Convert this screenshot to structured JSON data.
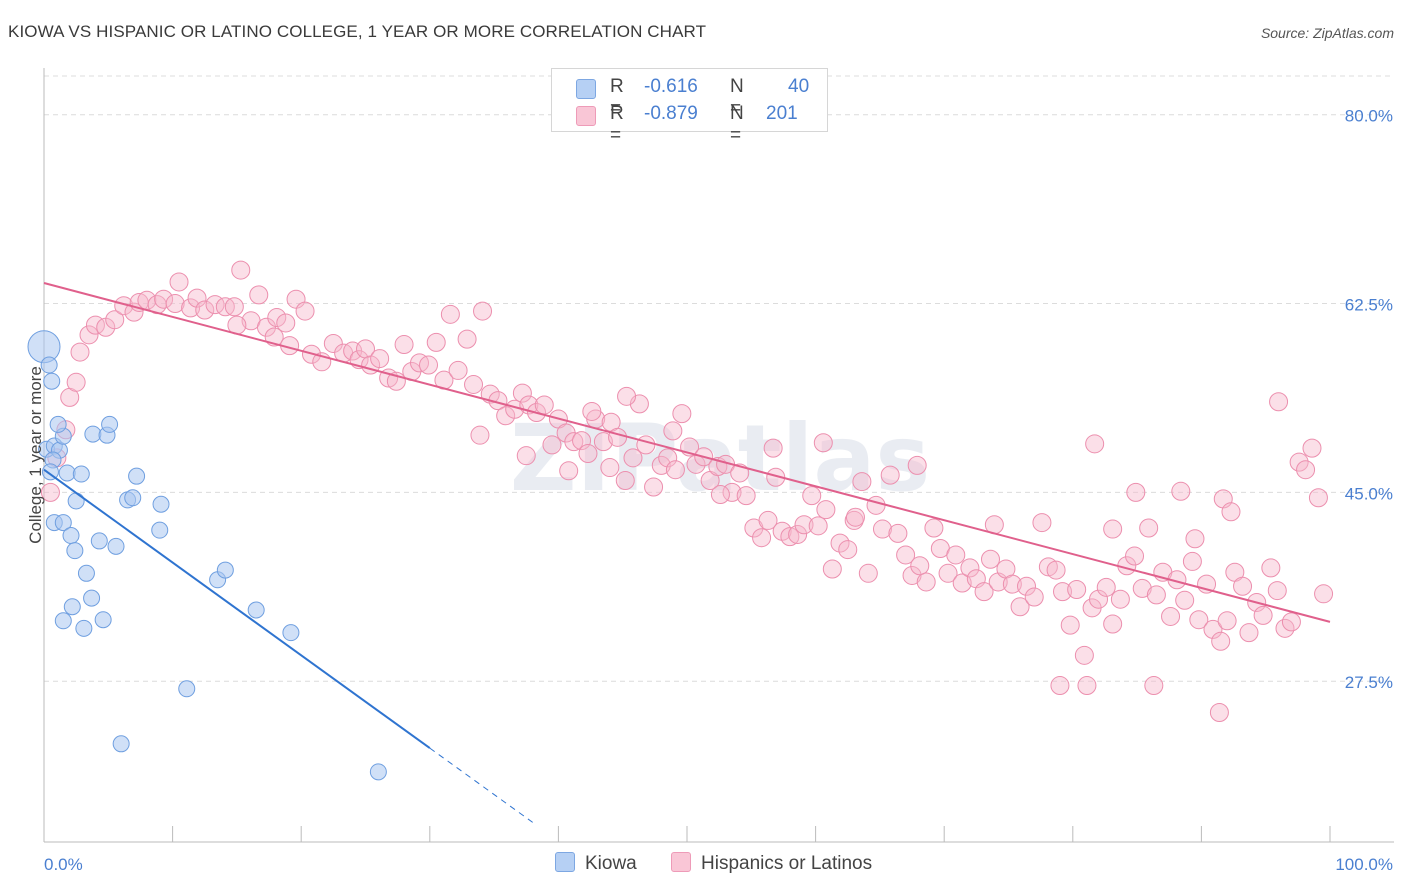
{
  "title": "KIOWA VS HISPANIC OR LATINO COLLEGE, 1 YEAR OR MORE CORRELATION CHART",
  "source": "Source: ZipAtlas.com",
  "watermark": "ZIPatlas",
  "colors": {
    "kiowa_fill": "#a9c7f0",
    "kiowa_stroke": "#6f9fe0",
    "kiowa_line": "#2f74d0",
    "hisp_fill": "#f7b9cc",
    "hisp_stroke": "#ec8fae",
    "hisp_line": "#e0608c",
    "tick_text": "#4a7fd0",
    "grid": "#dcdcdc"
  },
  "legend": {
    "rows": [
      {
        "r_label": "R =",
        "r_value": "-0.616",
        "n_label": "N =",
        "n_value": "40"
      },
      {
        "r_label": "R =",
        "r_value": "-0.879",
        "n_label": "N =",
        "n_value": "201"
      }
    ]
  },
  "chart_data": {
    "type": "scatter",
    "xlabel": "",
    "ylabel": "College, 1 year or more",
    "xlim": [
      0,
      100
    ],
    "ylim": [
      12.6,
      83.4
    ],
    "x_tick_labels": [
      "0.0%",
      "100.0%"
    ],
    "y_ticks": [
      27.5,
      45.0,
      62.5,
      80.0
    ],
    "y_tick_labels": [
      "27.5%",
      "45.0%",
      "62.5%",
      "80.0%"
    ],
    "grid": true,
    "legend_position": "top-center",
    "series": [
      {
        "name": "Kiowa",
        "r": -0.616,
        "n": 40,
        "trend": {
          "x0": 0.0,
          "y0": 47.1,
          "x1": 30.0,
          "y1": 21.3,
          "dash_to_x": 38.0
        },
        "points": [
          [
            0.0,
            58.5
          ],
          [
            0.4,
            56.8
          ],
          [
            0.6,
            55.3
          ],
          [
            0.2,
            49.0
          ],
          [
            0.8,
            49.3
          ],
          [
            1.2,
            48.9
          ],
          [
            1.5,
            50.2
          ],
          [
            1.1,
            51.3
          ],
          [
            0.7,
            48.0
          ],
          [
            0.5,
            46.9
          ],
          [
            1.8,
            46.8
          ],
          [
            2.9,
            46.7
          ],
          [
            3.8,
            50.4
          ],
          [
            4.9,
            50.3
          ],
          [
            5.1,
            51.3
          ],
          [
            7.2,
            46.5
          ],
          [
            6.5,
            44.3
          ],
          [
            6.9,
            44.5
          ],
          [
            9.1,
            43.9
          ],
          [
            9.0,
            41.5
          ],
          [
            0.8,
            42.2
          ],
          [
            1.5,
            42.2
          ],
          [
            2.1,
            41.0
          ],
          [
            2.5,
            44.2
          ],
          [
            4.3,
            40.5
          ],
          [
            5.6,
            40.0
          ],
          [
            2.4,
            39.6
          ],
          [
            3.3,
            37.5
          ],
          [
            3.7,
            35.2
          ],
          [
            2.2,
            34.4
          ],
          [
            1.5,
            33.1
          ],
          [
            3.1,
            32.4
          ],
          [
            4.6,
            33.2
          ],
          [
            13.5,
            36.9
          ],
          [
            14.1,
            37.8
          ],
          [
            16.5,
            34.1
          ],
          [
            19.2,
            32.0
          ],
          [
            11.1,
            26.8
          ],
          [
            6.0,
            21.7
          ],
          [
            26.0,
            19.1
          ]
        ]
      },
      {
        "name": "Hispanics or Latinos",
        "r": -0.879,
        "n": 201,
        "trend": {
          "x0": 0.0,
          "y0": 64.4,
          "x1": 100.0,
          "y1": 33.0
        },
        "points": [
          [
            0.5,
            45.0
          ],
          [
            1.0,
            48.2
          ],
          [
            1.7,
            50.8
          ],
          [
            2.0,
            53.8
          ],
          [
            2.5,
            55.2
          ],
          [
            2.8,
            58.0
          ],
          [
            3.5,
            59.6
          ],
          [
            4.0,
            60.5
          ],
          [
            4.8,
            60.3
          ],
          [
            5.5,
            61.0
          ],
          [
            6.2,
            62.3
          ],
          [
            7.0,
            61.7
          ],
          [
            7.4,
            62.6
          ],
          [
            8.0,
            62.8
          ],
          [
            8.8,
            62.4
          ],
          [
            9.3,
            62.9
          ],
          [
            10.2,
            62.5
          ],
          [
            10.5,
            64.5
          ],
          [
            11.4,
            62.1
          ],
          [
            11.9,
            63.0
          ],
          [
            12.5,
            61.9
          ],
          [
            13.3,
            62.4
          ],
          [
            14.1,
            62.2
          ],
          [
            14.8,
            62.2
          ],
          [
            15.3,
            65.6
          ],
          [
            16.1,
            60.9
          ],
          [
            17.3,
            60.3
          ],
          [
            18.1,
            61.2
          ],
          [
            18.8,
            60.7
          ],
          [
            19.6,
            62.9
          ],
          [
            20.3,
            61.8
          ],
          [
            15.0,
            60.5
          ],
          [
            16.7,
            63.3
          ],
          [
            17.9,
            59.4
          ],
          [
            19.1,
            58.6
          ],
          [
            20.8,
            57.8
          ],
          [
            21.6,
            57.1
          ],
          [
            22.5,
            58.8
          ],
          [
            23.3,
            57.9
          ],
          [
            24.0,
            58.1
          ],
          [
            24.5,
            57.3
          ],
          [
            25.0,
            58.3
          ],
          [
            25.4,
            56.8
          ],
          [
            26.1,
            57.4
          ],
          [
            26.8,
            55.6
          ],
          [
            27.4,
            55.3
          ],
          [
            28.0,
            58.7
          ],
          [
            28.6,
            56.2
          ],
          [
            29.2,
            57.0
          ],
          [
            29.9,
            56.8
          ],
          [
            30.5,
            58.9
          ],
          [
            31.1,
            55.4
          ],
          [
            31.6,
            61.5
          ],
          [
            32.2,
            56.3
          ],
          [
            32.9,
            59.2
          ],
          [
            33.4,
            55.0
          ],
          [
            34.1,
            61.8
          ],
          [
            34.7,
            54.1
          ],
          [
            35.3,
            53.5
          ],
          [
            35.9,
            52.1
          ],
          [
            36.6,
            52.7
          ],
          [
            37.2,
            54.2
          ],
          [
            37.7,
            53.1
          ],
          [
            38.3,
            52.4
          ],
          [
            38.9,
            53.1
          ],
          [
            39.5,
            49.4
          ],
          [
            40.0,
            51.8
          ],
          [
            40.6,
            50.5
          ],
          [
            41.2,
            49.7
          ],
          [
            41.8,
            49.8
          ],
          [
            42.3,
            48.6
          ],
          [
            42.9,
            51.8
          ],
          [
            43.5,
            49.7
          ],
          [
            44.1,
            51.5
          ],
          [
            44.6,
            50.1
          ],
          [
            45.2,
            46.1
          ],
          [
            45.8,
            48.2
          ],
          [
            46.3,
            53.2
          ],
          [
            46.8,
            49.4
          ],
          [
            47.4,
            45.5
          ],
          [
            48.0,
            47.5
          ],
          [
            48.5,
            48.2
          ],
          [
            49.1,
            47.1
          ],
          [
            49.6,
            52.3
          ],
          [
            50.2,
            49.2
          ],
          [
            50.7,
            47.6
          ],
          [
            51.3,
            48.3
          ],
          [
            51.8,
            46.1
          ],
          [
            52.4,
            47.4
          ],
          [
            53.0,
            47.6
          ],
          [
            53.5,
            45.0
          ],
          [
            54.1,
            46.8
          ],
          [
            54.6,
            44.7
          ],
          [
            55.2,
            41.7
          ],
          [
            55.8,
            40.8
          ],
          [
            56.3,
            42.4
          ],
          [
            56.9,
            46.4
          ],
          [
            57.4,
            41.4
          ],
          [
            58.0,
            40.9
          ],
          [
            58.6,
            41.1
          ],
          [
            59.1,
            42.0
          ],
          [
            59.7,
            44.7
          ],
          [
            60.2,
            41.9
          ],
          [
            60.8,
            43.4
          ],
          [
            61.3,
            37.9
          ],
          [
            61.9,
            40.3
          ],
          [
            62.5,
            39.7
          ],
          [
            63.0,
            42.4
          ],
          [
            63.6,
            46.0
          ],
          [
            64.1,
            37.5
          ],
          [
            64.7,
            43.8
          ],
          [
            65.2,
            41.6
          ],
          [
            65.8,
            46.6
          ],
          [
            66.4,
            41.2
          ],
          [
            67.0,
            39.2
          ],
          [
            67.5,
            37.3
          ],
          [
            68.1,
            38.2
          ],
          [
            68.6,
            36.7
          ],
          [
            69.2,
            41.7
          ],
          [
            69.7,
            39.8
          ],
          [
            70.3,
            37.5
          ],
          [
            70.9,
            39.2
          ],
          [
            71.4,
            36.6
          ],
          [
            72.0,
            38.0
          ],
          [
            72.5,
            37.0
          ],
          [
            73.1,
            35.8
          ],
          [
            73.6,
            38.8
          ],
          [
            74.2,
            36.7
          ],
          [
            74.8,
            37.9
          ],
          [
            75.3,
            36.5
          ],
          [
            75.9,
            34.4
          ],
          [
            76.4,
            36.3
          ],
          [
            77.0,
            35.3
          ],
          [
            77.6,
            42.2
          ],
          [
            78.1,
            38.1
          ],
          [
            78.7,
            37.8
          ],
          [
            79.2,
            35.8
          ],
          [
            79.8,
            32.7
          ],
          [
            80.3,
            36.0
          ],
          [
            80.9,
            29.9
          ],
          [
            81.5,
            34.3
          ],
          [
            82.0,
            35.1
          ],
          [
            82.6,
            36.2
          ],
          [
            83.1,
            32.8
          ],
          [
            83.7,
            35.1
          ],
          [
            84.2,
            38.2
          ],
          [
            84.8,
            39.1
          ],
          [
            85.4,
            36.1
          ],
          [
            85.9,
            41.7
          ],
          [
            86.5,
            35.5
          ],
          [
            87.0,
            37.6
          ],
          [
            87.6,
            33.5
          ],
          [
            88.1,
            36.9
          ],
          [
            88.7,
            35.0
          ],
          [
            89.3,
            38.6
          ],
          [
            89.8,
            33.2
          ],
          [
            90.4,
            36.5
          ],
          [
            90.9,
            32.3
          ],
          [
            91.5,
            31.2
          ],
          [
            92.0,
            33.1
          ],
          [
            92.6,
            37.6
          ],
          [
            93.2,
            36.3
          ],
          [
            93.7,
            32.0
          ],
          [
            94.3,
            34.8
          ],
          [
            94.8,
            33.6
          ],
          [
            95.4,
            38.0
          ],
          [
            95.9,
            35.9
          ],
          [
            96.5,
            32.4
          ],
          [
            97.0,
            33.0
          ],
          [
            97.6,
            47.8
          ],
          [
            98.1,
            47.1
          ],
          [
            98.6,
            49.1
          ],
          [
            99.1,
            44.5
          ],
          [
            99.5,
            35.6
          ],
          [
            96.0,
            53.4
          ],
          [
            79.0,
            27.1
          ],
          [
            81.1,
            27.1
          ],
          [
            86.3,
            27.1
          ],
          [
            91.4,
            24.6
          ],
          [
            81.7,
            49.5
          ],
          [
            88.4,
            45.1
          ],
          [
            84.9,
            45.0
          ],
          [
            91.7,
            44.4
          ],
          [
            73.9,
            42.0
          ],
          [
            83.1,
            41.6
          ],
          [
            89.5,
            40.7
          ],
          [
            92.3,
            43.2
          ],
          [
            60.6,
            49.6
          ],
          [
            56.7,
            49.1
          ],
          [
            48.9,
            50.7
          ],
          [
            45.3,
            53.9
          ],
          [
            42.6,
            52.5
          ],
          [
            52.6,
            44.8
          ],
          [
            63.1,
            42.7
          ],
          [
            67.9,
            47.5
          ],
          [
            44.0,
            47.3
          ],
          [
            40.8,
            47.0
          ],
          [
            37.5,
            48.4
          ],
          [
            33.9,
            50.3
          ]
        ]
      }
    ]
  }
}
